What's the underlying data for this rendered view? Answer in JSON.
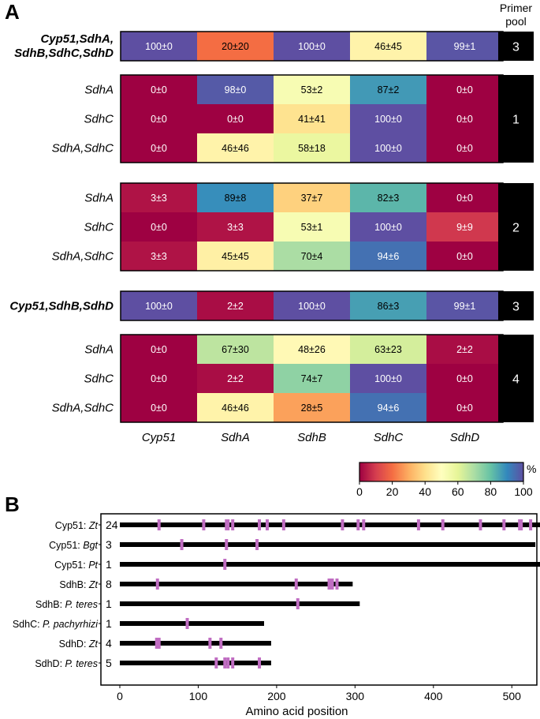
{
  "panel_labels": {
    "a": "A",
    "b": "B"
  },
  "chart_data": [
    {
      "type": "heatmap",
      "panel": "A",
      "columns": [
        "Cyp51",
        "SdhA",
        "SdhB",
        "SdhC",
        "SdhD"
      ],
      "primer_pool_header": [
        "Primer",
        "pool"
      ],
      "colorbar": {
        "min": 0,
        "max": 100,
        "ticks": [
          "0",
          "20",
          "40",
          "60",
          "80",
          "100"
        ],
        "unit": "%",
        "colors": [
          "#9e0142",
          "#d53e4f",
          "#f46d43",
          "#fdae61",
          "#fee08b",
          "#ffffbf",
          "#e6f598",
          "#abdda4",
          "#66c2a5",
          "#3288bd",
          "#5e4fa2"
        ]
      },
      "groups": [
        {
          "pool": "3",
          "rows": [
            {
              "label": [
                "Cyp51,SdhA,",
                "SdhB,SdhC,SdhD"
              ],
              "bold": true,
              "values": [
                100,
                20,
                100,
                46,
                99
              ],
              "labels": [
                "100±0",
                "20±20",
                "100±0",
                "46±45",
                "99±1"
              ]
            }
          ]
        },
        {
          "pool": "1",
          "rows": [
            {
              "label": [
                "SdhA"
              ],
              "values": [
                0,
                98,
                53,
                87,
                0
              ],
              "labels": [
                "0±0",
                "98±0",
                "53±2",
                "87±2",
                "0±0"
              ]
            },
            {
              "label": [
                "SdhC"
              ],
              "values": [
                0,
                0,
                41,
                100,
                0
              ],
              "labels": [
                "0±0",
                "0±0",
                "41±41",
                "100±0",
                "0±0"
              ]
            },
            {
              "label": [
                "SdhA,SdhC"
              ],
              "values": [
                0,
                46,
                58,
                100,
                0
              ],
              "labels": [
                "0±0",
                "46±46",
                "58±18",
                "100±0",
                "0±0"
              ]
            }
          ]
        },
        {
          "pool": "2",
          "rows": [
            {
              "label": [
                "SdhA"
              ],
              "values": [
                3,
                89,
                37,
                82,
                0
              ],
              "labels": [
                "3±3",
                "89±8",
                "37±7",
                "82±3",
                "0±0"
              ]
            },
            {
              "label": [
                "SdhC"
              ],
              "values": [
                0,
                3,
                53,
                100,
                9
              ],
              "labels": [
                "0±0",
                "3±3",
                "53±1",
                "100±0",
                "9±9"
              ]
            },
            {
              "label": [
                "SdhA,SdhC"
              ],
              "values": [
                3,
                45,
                70,
                94,
                0
              ],
              "labels": [
                "3±3",
                "45±45",
                "70±4",
                "94±6",
                "0±0"
              ]
            }
          ]
        },
        {
          "pool": "3",
          "rows": [
            {
              "label": [
                "Cyp51,SdhB,SdhD"
              ],
              "bold": true,
              "values": [
                100,
                2,
                100,
                86,
                99
              ],
              "labels": [
                "100±0",
                "2±2",
                "100±0",
                "86±3",
                "99±1"
              ]
            }
          ]
        },
        {
          "pool": "4",
          "rows": [
            {
              "label": [
                "SdhA"
              ],
              "values": [
                0,
                67,
                48,
                63,
                2
              ],
              "labels": [
                "0±0",
                "67±30",
                "48±26",
                "63±23",
                "2±2"
              ]
            },
            {
              "label": [
                "SdhC"
              ],
              "values": [
                0,
                2,
                74,
                100,
                0
              ],
              "labels": [
                "0±0",
                "2±2",
                "74±7",
                "100±0",
                "0±0"
              ]
            },
            {
              "label": [
                "SdhA,SdhC"
              ],
              "values": [
                0,
                46,
                28,
                94,
                0
              ],
              "labels": [
                "0±0",
                "46±46",
                "28±5",
                "94±6",
                "0±0"
              ]
            }
          ]
        }
      ]
    },
    {
      "type": "protein-map",
      "panel": "B",
      "xlabel": "Amino acid position",
      "xlim": [
        0,
        550
      ],
      "xticks": [
        0,
        100,
        200,
        300,
        400,
        500
      ],
      "marker_color": "#c06dc2",
      "proteins": [
        {
          "gene": "Cyp51",
          "species": "Zt",
          "italic": true,
          "count": "24",
          "length": 545,
          "mutations": [
            50,
            107,
            136,
            138,
            144,
            178,
            188,
            209,
            284,
            304,
            311,
            381,
            412,
            460,
            490,
            510,
            512,
            524
          ]
        },
        {
          "gene": "Cyp51",
          "species": "Bgt",
          "italic": true,
          "count": "3",
          "length": 530,
          "mutations": [
            79,
            136,
            175
          ]
        },
        {
          "gene": "Cyp51",
          "species": "Pt",
          "italic": true,
          "count": "1",
          "length": 537,
          "mutations": [
            134
          ]
        },
        {
          "gene": "SdhB",
          "species": "Zt",
          "italic": true,
          "count": "8",
          "length": 297,
          "mutations": [
            48,
            225,
            267,
            269,
            271,
            277
          ]
        },
        {
          "gene": "SdhB",
          "species": "P. teres",
          "italic": true,
          "count": "1",
          "length": 306,
          "mutations": [
            227
          ]
        },
        {
          "gene": "SdhC",
          "species": "P. pachyrhizi",
          "italic": true,
          "count": "1",
          "length": 184,
          "mutations": [
            86
          ]
        },
        {
          "gene": "SdhD",
          "species": "Zt",
          "italic": true,
          "count": "4",
          "length": 193,
          "mutations": [
            47,
            50,
            115,
            129
          ]
        },
        {
          "gene": "SdhD",
          "species": "P. teres",
          "italic": true,
          "count": "5",
          "length": 193,
          "mutations": [
            123,
            134,
            138,
            144,
            178
          ]
        }
      ]
    }
  ]
}
